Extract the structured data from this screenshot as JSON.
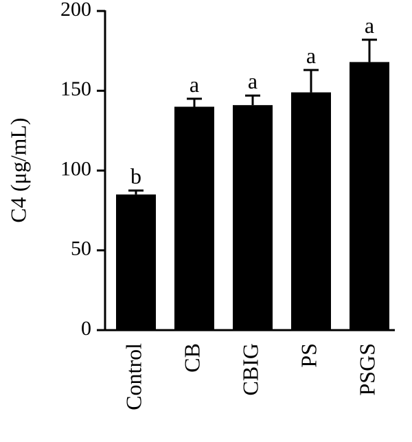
{
  "chart_data": {
    "type": "bar",
    "ylabel": "C4 (μg/mL)",
    "categories": [
      "Control",
      "CB",
      "CBIG",
      "PS",
      "PSGS"
    ],
    "values": [
      85,
      140,
      141,
      149,
      168
    ],
    "errors": [
      2.5,
      5,
      6,
      14,
      14
    ],
    "annotations": [
      "b",
      "a",
      "a",
      "a",
      "a"
    ],
    "color": "#000000",
    "ylim": [
      0,
      200
    ],
    "yticks": [
      0,
      50,
      100,
      150,
      200
    ]
  }
}
